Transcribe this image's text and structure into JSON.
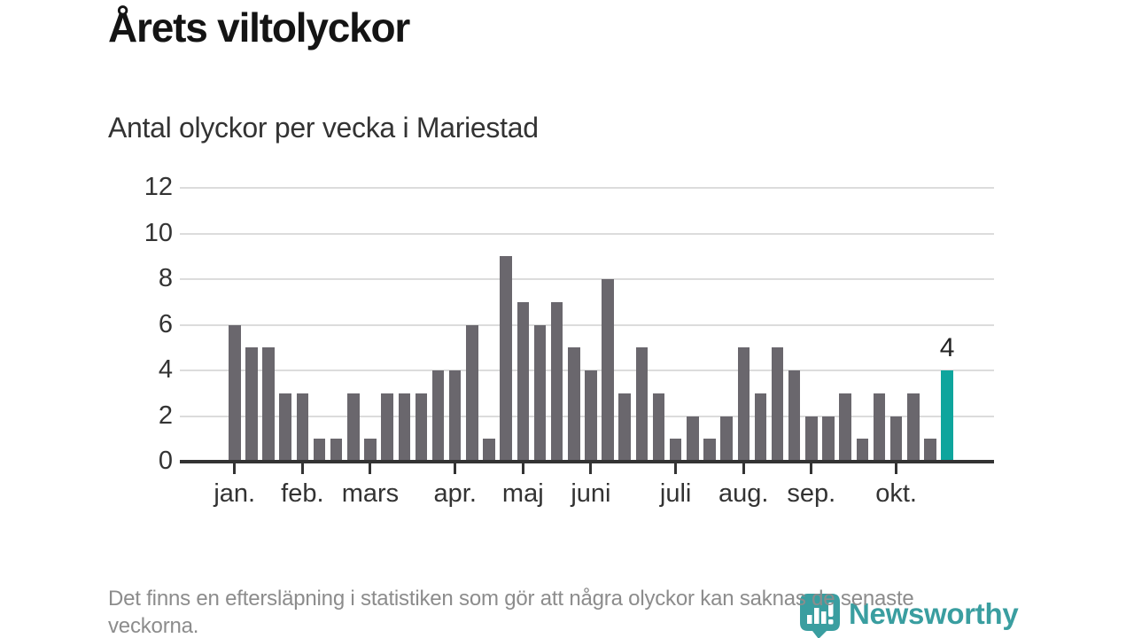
{
  "header": {
    "title": "Årets viltolyckor",
    "subtitle": "Antal olyckor per vecka i Mariestad"
  },
  "chart_data": {
    "type": "bar",
    "title": "Årets viltolyckor",
    "subtitle": "Antal olyckor per vecka i Mariestad",
    "ylabel": "",
    "xlabel": "",
    "ylim": [
      0,
      12
    ],
    "y_ticks": [
      0,
      2,
      4,
      6,
      8,
      10,
      12
    ],
    "grid": true,
    "values": [
      6,
      5,
      5,
      3,
      3,
      1,
      1,
      3,
      1,
      3,
      3,
      3,
      4,
      4,
      6,
      1,
      9,
      7,
      6,
      7,
      5,
      4,
      8,
      3,
      5,
      3,
      1,
      2,
      1,
      2,
      5,
      3,
      5,
      4,
      2,
      2,
      3,
      1,
      3,
      2,
      3,
      1,
      4
    ],
    "highlight_last": true,
    "last_value_label": "4",
    "x_ticks": [
      {
        "label": "jan.",
        "week_index": 0
      },
      {
        "label": "feb.",
        "week_index": 4
      },
      {
        "label": "mars",
        "week_index": 8
      },
      {
        "label": "apr.",
        "week_index": 13
      },
      {
        "label": "maj",
        "week_index": 17
      },
      {
        "label": "juni",
        "week_index": 21
      },
      {
        "label": "juli",
        "week_index": 26
      },
      {
        "label": "aug.",
        "week_index": 30
      },
      {
        "label": "sep.",
        "week_index": 34
      },
      {
        "label": "okt.",
        "week_index": 39
      }
    ],
    "colors": {
      "bar": "#6a676d",
      "highlight": "#0ea59d",
      "grid": "#dcdcdc",
      "axis": "#333333",
      "label": "#333333"
    }
  },
  "footer": {
    "note": "Det finns en eftersläpning i statistiken som gör att några olyckor kan saknas de senaste veckorna.",
    "logo_text": "Newsworthy",
    "logo_color": "#3a9ea0"
  }
}
